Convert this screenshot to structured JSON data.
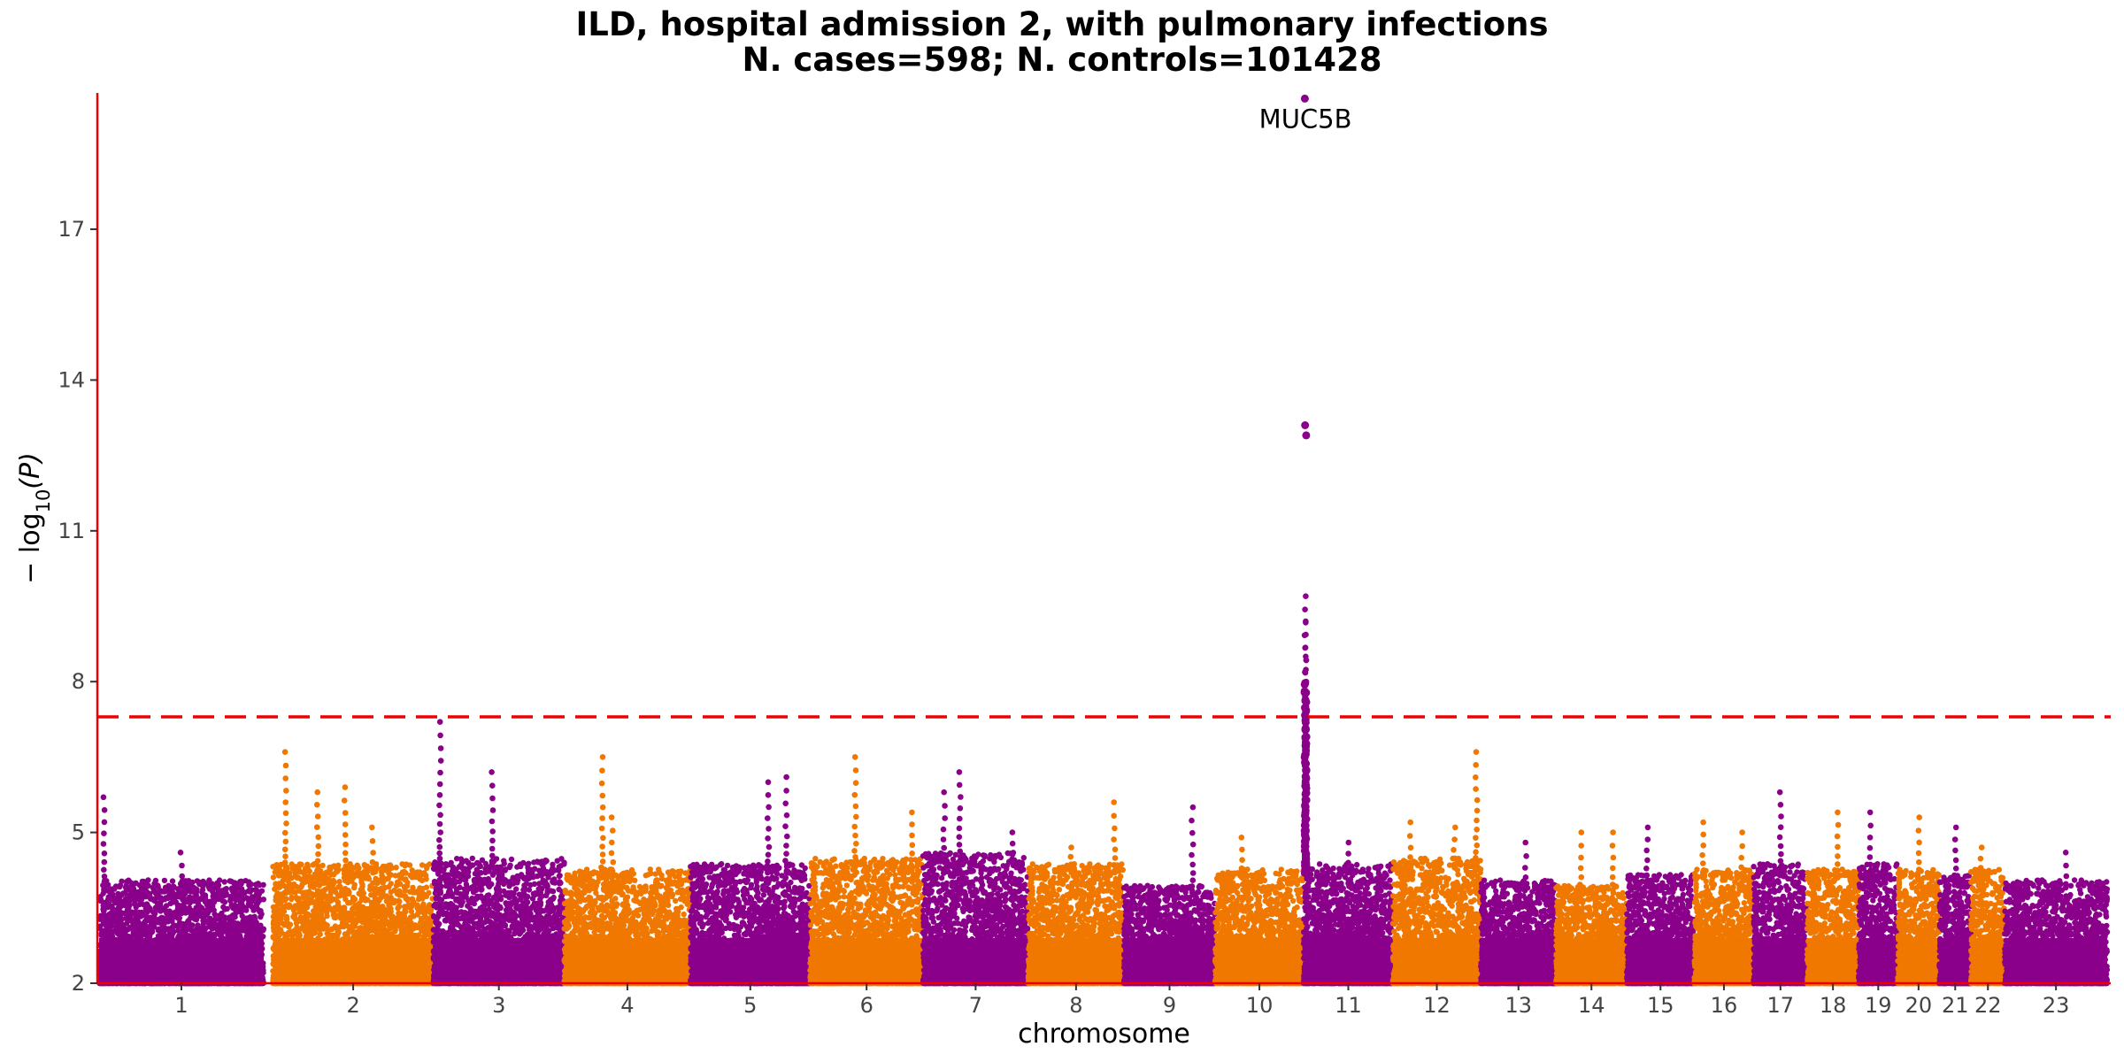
{
  "chart_data": {
    "type": "scatter",
    "subtype": "manhattan",
    "title": "ILD, hospital admission 2, with pulmonary infections",
    "subtitle": "N. cases=598; N. controls=101428",
    "xlabel": "chromosome",
    "ylabel_prefix": "− log",
    "ylabel_sub": "10",
    "ylabel_suffix": "(P)",
    "ylim": [
      2,
      19.8
    ],
    "yticks": [
      2,
      5,
      8,
      11,
      14,
      17
    ],
    "ytick_labels": [
      "2",
      "5",
      "8",
      "11",
      "14",
      "17"
    ],
    "significance_threshold": 7.3,
    "threshold_style": "dashed",
    "colors": {
      "odd_chromosome": "#8b008b",
      "even_chromosome": "#f07800",
      "threshold": "#ee0000",
      "axis": "#ee0000"
    },
    "grid": false,
    "legend": "none",
    "chromosomes": [
      {
        "label": "1",
        "length": 249,
        "baseline_max": 3.9,
        "peaks": [
          {
            "pos": 0.03,
            "p": 5.7
          },
          {
            "pos": 0.5,
            "p": 4.6
          }
        ]
      },
      {
        "label": "",
        "length": 0,
        "baseline_max": 0,
        "peaks": []
      },
      {
        "label": "2",
        "length": 243,
        "baseline_max": 4.2,
        "peaks": [
          {
            "pos": 0.08,
            "p": 6.6
          },
          {
            "pos": 0.28,
            "p": 5.8
          },
          {
            "pos": 0.45,
            "p": 5.9
          },
          {
            "pos": 0.62,
            "p": 5.1
          }
        ]
      },
      {
        "label": "3",
        "length": 198,
        "baseline_max": 4.3,
        "peaks": [
          {
            "pos": 0.05,
            "p": 7.2
          },
          {
            "pos": 0.45,
            "p": 6.2
          }
        ]
      },
      {
        "label": "4",
        "length": 191,
        "baseline_max": 4.1,
        "peaks": [
          {
            "pos": 0.3,
            "p": 6.5
          },
          {
            "pos": 0.38,
            "p": 5.3
          }
        ]
      },
      {
        "label": "5",
        "length": 181,
        "baseline_max": 4.2,
        "peaks": [
          {
            "pos": 0.65,
            "p": 6.0
          },
          {
            "pos": 0.8,
            "p": 6.1
          }
        ]
      },
      {
        "label": "6",
        "length": 171,
        "baseline_max": 4.3,
        "peaks": [
          {
            "pos": 0.4,
            "p": 6.5
          },
          {
            "pos": 0.9,
            "p": 5.4
          }
        ]
      },
      {
        "label": "7",
        "length": 159,
        "baseline_max": 4.4,
        "peaks": [
          {
            "pos": 0.2,
            "p": 5.8
          },
          {
            "pos": 0.35,
            "p": 6.2
          },
          {
            "pos": 0.85,
            "p": 5.0
          }
        ]
      },
      {
        "label": "8",
        "length": 145,
        "baseline_max": 4.2,
        "peaks": [
          {
            "pos": 0.9,
            "p": 5.6
          },
          {
            "pos": 0.45,
            "p": 4.7
          }
        ]
      },
      {
        "label": "9",
        "length": 138,
        "baseline_max": 3.8,
        "peaks": [
          {
            "pos": 0.75,
            "p": 5.5
          }
        ]
      },
      {
        "label": "10",
        "length": 134,
        "baseline_max": 4.1,
        "peaks": [
          {
            "pos": 0.3,
            "p": 4.9
          }
        ]
      },
      {
        "label": "11",
        "length": 135,
        "baseline_max": 4.2,
        "peaks": [
          {
            "pos": 0.02,
            "p": 19.6,
            "label": "MUC5B"
          },
          {
            "pos": 0.02,
            "p": 13.1
          },
          {
            "pos": 0.02,
            "p": 12.9
          },
          {
            "pos": 0.02,
            "p": 9.7
          },
          {
            "pos": 0.02,
            "p": 9.2
          },
          {
            "pos": 0.02,
            "p": 8.5
          },
          {
            "pos": 0.02,
            "p": 8.0
          },
          {
            "pos": 0.02,
            "p": 7.7
          },
          {
            "pos": 0.5,
            "p": 4.8
          }
        ]
      },
      {
        "label": "12",
        "length": 133,
        "baseline_max": 4.3,
        "peaks": [
          {
            "pos": 0.95,
            "p": 6.6
          },
          {
            "pos": 0.2,
            "p": 5.2
          },
          {
            "pos": 0.7,
            "p": 5.1
          }
        ]
      },
      {
        "label": "13",
        "length": 114,
        "baseline_max": 3.9,
        "peaks": [
          {
            "pos": 0.6,
            "p": 4.8
          }
        ]
      },
      {
        "label": "14",
        "length": 107,
        "baseline_max": 3.8,
        "peaks": [
          {
            "pos": 0.35,
            "p": 5.0
          },
          {
            "pos": 0.8,
            "p": 5.0
          }
        ]
      },
      {
        "label": "15",
        "length": 102,
        "baseline_max": 4.0,
        "peaks": [
          {
            "pos": 0.3,
            "p": 5.1
          }
        ]
      },
      {
        "label": "16",
        "length": 90,
        "baseline_max": 4.1,
        "peaks": [
          {
            "pos": 0.15,
            "p": 5.2
          },
          {
            "pos": 0.8,
            "p": 5.0
          }
        ]
      },
      {
        "label": "17",
        "length": 81,
        "baseline_max": 4.2,
        "peaks": [
          {
            "pos": 0.5,
            "p": 5.8
          }
        ]
      },
      {
        "label": "18",
        "length": 78,
        "baseline_max": 4.1,
        "peaks": [
          {
            "pos": 0.6,
            "p": 5.4
          }
        ]
      },
      {
        "label": "19",
        "length": 59,
        "baseline_max": 4.2,
        "peaks": [
          {
            "pos": 0.3,
            "p": 5.4
          }
        ]
      },
      {
        "label": "20",
        "length": 63,
        "baseline_max": 4.1,
        "peaks": [
          {
            "pos": 0.5,
            "p": 5.3
          }
        ]
      },
      {
        "label": "21",
        "length": 48,
        "baseline_max": 4.0,
        "peaks": [
          {
            "pos": 0.5,
            "p": 5.1
          }
        ]
      },
      {
        "label": "22",
        "length": 51,
        "baseline_max": 4.1,
        "peaks": [
          {
            "pos": 0.3,
            "p": 4.7
          }
        ]
      },
      {
        "label": "23",
        "length": 155,
        "baseline_max": 3.9,
        "peaks": [
          {
            "pos": 0.6,
            "p": 4.6
          }
        ]
      }
    ]
  }
}
